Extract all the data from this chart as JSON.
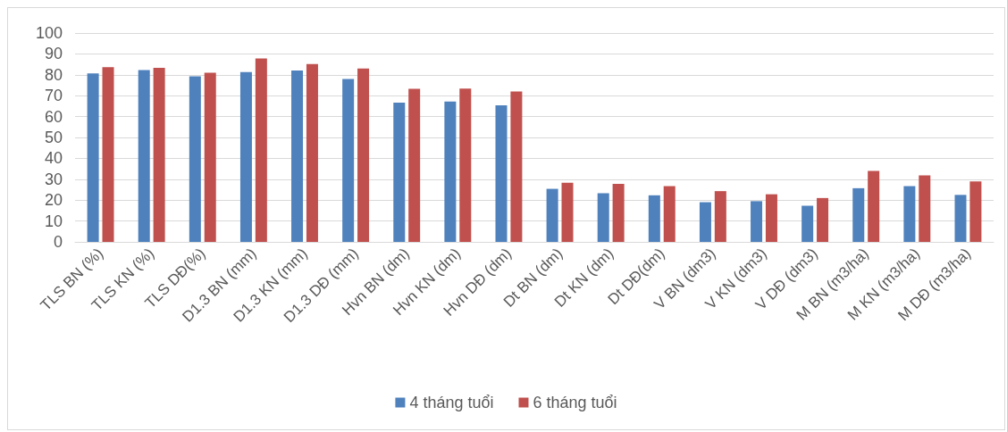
{
  "chart_data": {
    "type": "bar",
    "categories": [
      "TLS BN (%)",
      "TLS KN (%)",
      "TLS DĐ(%)",
      "D1.3 BN (mm)",
      "D1.3 KN (mm)",
      "D1.3 DĐ (mm)",
      "Hvn BN (dm)",
      "Hvn KN (dm)",
      "Hvn DĐ (dm)",
      "Dt BN (dm)",
      "Dt KN (dm)",
      "Dt DĐ(dm)",
      "V BN (dm3)",
      "V KN (dm3)",
      "V DĐ (dm3)",
      "M BN (m3/ha)",
      "M KN (m3/ha)",
      "M DĐ (m3/ha)"
    ],
    "series": [
      {
        "name": "4 tháng tuổi",
        "color": "#4f81bd",
        "values": [
          80.7,
          82.3,
          79.3,
          81.3,
          82,
          78,
          66.7,
          67.2,
          65.4,
          25.4,
          23.3,
          22.3,
          19,
          19.5,
          17.3,
          25.7,
          26.7,
          22.5
        ]
      },
      {
        "name": "6 tháng tuổi",
        "color": "#c0504d",
        "values": [
          83.7,
          83.3,
          81,
          87.8,
          85.2,
          83,
          73.3,
          73.4,
          72,
          28.3,
          27.8,
          26.7,
          24.3,
          22.8,
          21,
          34,
          31.8,
          28.9
        ]
      }
    ],
    "ylim": [
      0,
      100
    ],
    "yticks": [
      0,
      10,
      20,
      30,
      40,
      50,
      60,
      70,
      80,
      90,
      100
    ],
    "grid": "y",
    "legend": "bottom"
  }
}
